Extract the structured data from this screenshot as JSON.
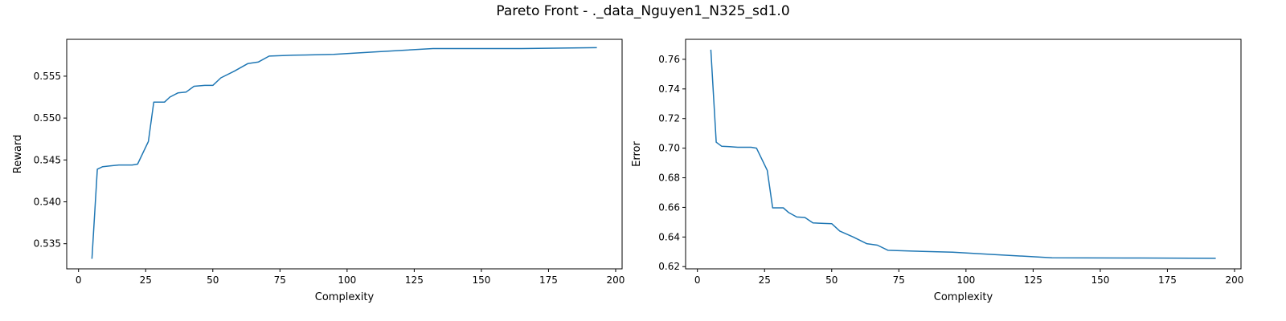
{
  "figure": {
    "title": "Pareto Front - ._data_Nguyen1_N325_sd1.0"
  },
  "chart_data": [
    {
      "type": "line",
      "title": "",
      "xlabel": "Complexity",
      "ylabel": "Reward",
      "xlim": [
        -4.4,
        202.4
      ],
      "ylim": [
        0.532,
        0.5594
      ],
      "xticks": [
        0,
        25,
        50,
        75,
        100,
        125,
        150,
        175,
        200
      ],
      "yticks": [
        0.535,
        0.54,
        0.545,
        0.55,
        0.555
      ],
      "ytick_labels": [
        "0.535",
        "0.540",
        "0.545",
        "0.550",
        "0.555"
      ],
      "grid": false,
      "color": "#1f77b4",
      "series": [
        {
          "x": [
            5,
            7,
            9,
            12,
            15,
            18,
            20,
            22,
            26,
            28,
            30,
            32,
            34,
            37,
            40,
            43,
            47,
            50,
            53,
            58,
            63,
            67,
            71,
            80,
            95,
            110,
            132,
            165,
            193
          ],
          "y": [
            0.5332,
            0.5439,
            0.5442,
            0.5443,
            0.5444,
            0.5444,
            0.5444,
            0.5445,
            0.5472,
            0.5519,
            0.5519,
            0.5519,
            0.5525,
            0.553,
            0.5531,
            0.5538,
            0.5539,
            0.5539,
            0.5548,
            0.5556,
            0.5565,
            0.5567,
            0.5574,
            0.5575,
            0.5576,
            0.5579,
            0.5583,
            0.5583,
            0.5584
          ]
        }
      ]
    },
    {
      "type": "line",
      "title": "",
      "xlabel": "Complexity",
      "ylabel": "Error",
      "xlim": [
        -4.4,
        202.4
      ],
      "ylim": [
        0.6185,
        0.7735
      ],
      "xticks": [
        0,
        25,
        50,
        75,
        100,
        125,
        150,
        175,
        200
      ],
      "yticks": [
        0.62,
        0.64,
        0.66,
        0.68,
        0.7,
        0.72,
        0.74,
        0.76
      ],
      "ytick_labels": [
        "0.62",
        "0.64",
        "0.66",
        "0.68",
        "0.70",
        "0.72",
        "0.74",
        "0.76"
      ],
      "grid": false,
      "color": "#1f77b4",
      "series": [
        {
          "x": [
            5,
            7,
            9,
            12,
            15,
            18,
            20,
            22,
            26,
            28,
            30,
            32,
            34,
            37,
            40,
            43,
            47,
            50,
            53,
            58,
            63,
            67,
            71,
            80,
            95,
            110,
            132,
            165,
            193
          ],
          "y": [
            0.7665,
            0.704,
            0.7013,
            0.701,
            0.7006,
            0.7006,
            0.7006,
            0.7,
            0.685,
            0.6597,
            0.6597,
            0.6597,
            0.6565,
            0.6535,
            0.6532,
            0.6495,
            0.6492,
            0.649,
            0.644,
            0.64,
            0.6355,
            0.6345,
            0.631,
            0.6305,
            0.6297,
            0.6282,
            0.626,
            0.6258,
            0.6256
          ]
        }
      ]
    }
  ]
}
